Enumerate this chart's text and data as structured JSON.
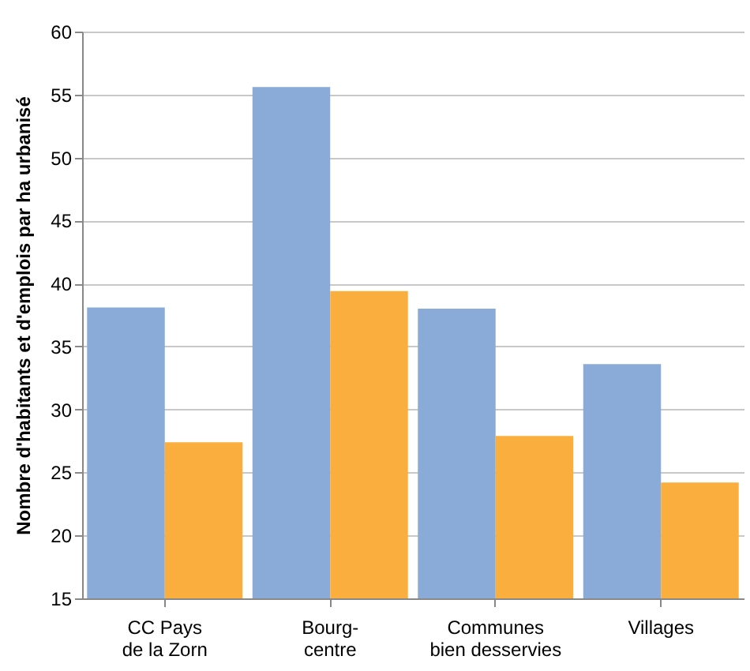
{
  "chart_data": {
    "type": "bar",
    "ylabel": "Nombre d'habitants et d'emplois par ha urbanisé",
    "categories": [
      "CC Pays de la Zorn",
      "Bourg-centre",
      "Communes bien desservies",
      "Villages"
    ],
    "series": [
      {
        "color": "#8aaad8",
        "values": [
          38.1,
          55.6,
          38.0,
          33.6
        ]
      },
      {
        "color": "#f9ae3d",
        "values": [
          27.4,
          39.4,
          27.9,
          24.2
        ]
      }
    ],
    "ylim": [
      15,
      60
    ],
    "yticks": [
      15,
      20,
      25,
      30,
      35,
      40,
      45,
      50,
      55,
      60
    ],
    "grid": "y"
  }
}
